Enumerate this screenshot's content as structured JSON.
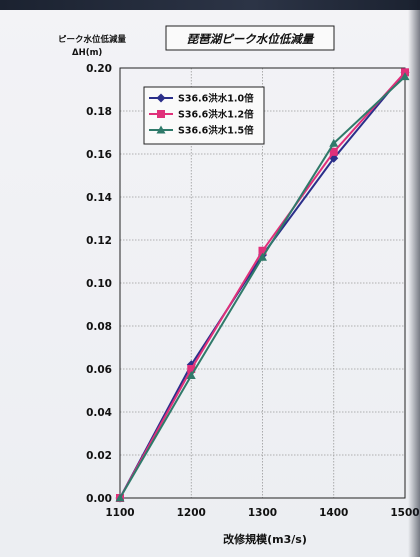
{
  "chart_data": {
    "type": "line",
    "title": "琵琶湖ピーク水位低減量",
    "ylabel_line1": "ピーク水位低減量",
    "ylabel_line2": "ΔH(m)",
    "xlabel": "改修規模(m3/s)",
    "x": [
      1100,
      1200,
      1300,
      1400,
      1500
    ],
    "xlim": [
      1100,
      1500
    ],
    "ylim": [
      0,
      0.2
    ],
    "y_ticks": [
      "0.00",
      "0.02",
      "0.04",
      "0.06",
      "0.08",
      "0.10",
      "0.12",
      "0.14",
      "0.16",
      "0.18",
      "0.20"
    ],
    "x_ticks": [
      "1100",
      "1200",
      "1300",
      "1400",
      "1500"
    ],
    "grid": true,
    "legend_position": "top-left",
    "series": [
      {
        "name": "S36.6洪水1.0倍",
        "values": [
          0.0,
          0.062,
          0.113,
          0.158,
          0.198
        ],
        "color": "#2b2f8a",
        "marker": "diamond"
      },
      {
        "name": "S36.6洪水1.2倍",
        "values": [
          0.0,
          0.06,
          0.115,
          0.161,
          0.198
        ],
        "color": "#e0307a",
        "marker": "square"
      },
      {
        "name": "S36.6洪水1.5倍",
        "values": [
          0.0,
          0.057,
          0.112,
          0.165,
          0.196
        ],
        "color": "#2f7a6a",
        "marker": "triangle"
      }
    ]
  }
}
